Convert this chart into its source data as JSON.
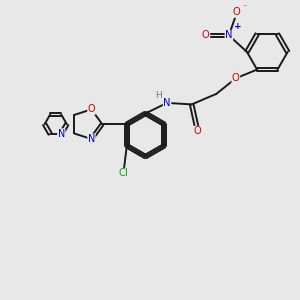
{
  "bg_color": "#e8e8e8",
  "bond_color": "#1a1a1a",
  "N_color": "#0000cc",
  "O_color": "#cc0000",
  "Cl_color": "#00aa00",
  "H_color": "#558888",
  "lw": 1.4,
  "dbo": 0.055,
  "fs": 7.2,
  "xlim": [
    0,
    10
  ],
  "ylim": [
    0,
    10
  ]
}
